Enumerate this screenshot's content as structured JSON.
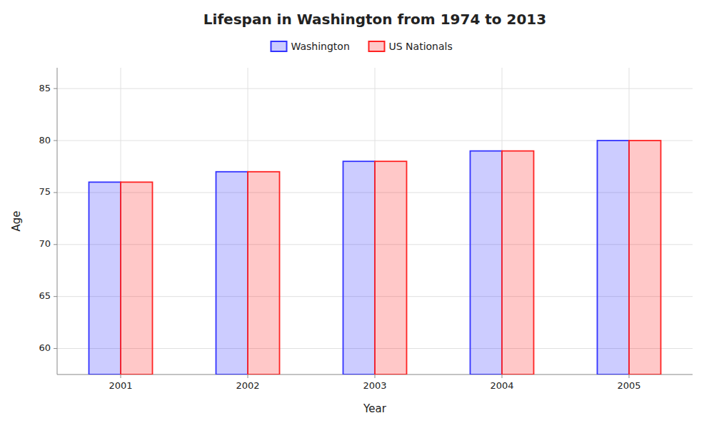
{
  "chart_data": {
    "type": "bar",
    "title": "Lifespan in Washington from 1974 to 2013",
    "xlabel": "Year",
    "ylabel": "Age",
    "categories": [
      "2001",
      "2002",
      "2003",
      "2004",
      "2005"
    ],
    "series": [
      {
        "name": "Washington",
        "color": "#3333ff",
        "values": [
          76,
          77,
          78,
          79,
          80
        ]
      },
      {
        "name": "US Nationals",
        "color": "#ff2222",
        "values": [
          76,
          77,
          78,
          79,
          80
        ]
      }
    ],
    "ylim": [
      57.5,
      87
    ],
    "yticks": [
      60,
      65,
      70,
      75,
      80,
      85
    ],
    "grid": true,
    "legend": "top"
  }
}
